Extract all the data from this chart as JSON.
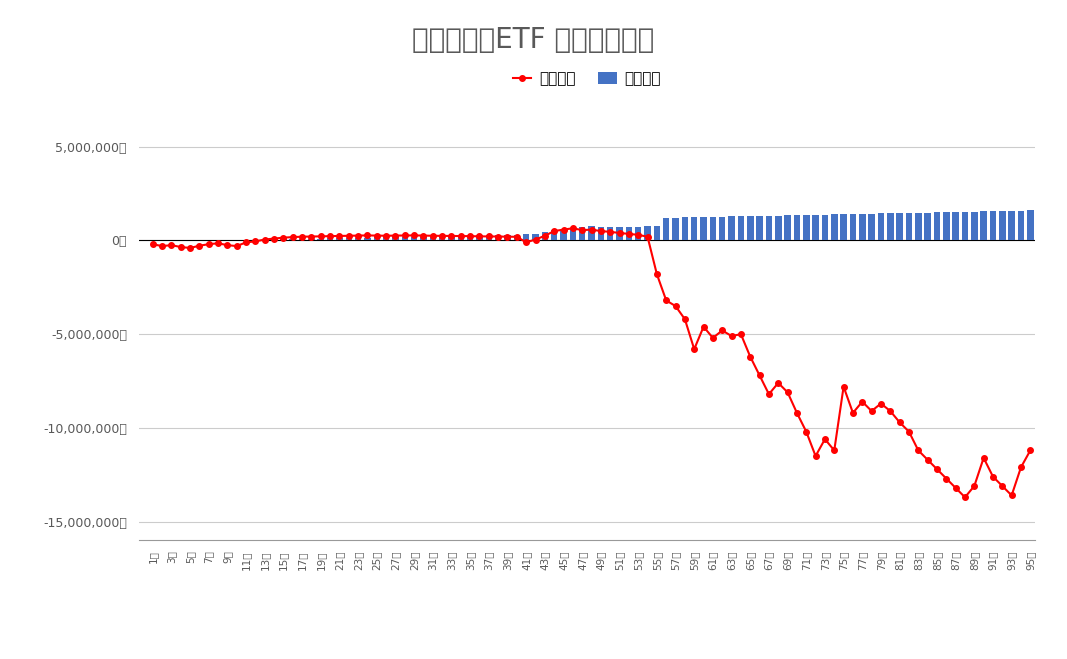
{
  "title": "トライオーETF 週別運用実績",
  "legend_realized": "実現損益",
  "legend_eval": "評価損益",
  "bar_color": "#4472C4",
  "line_color": "#FF0000",
  "background_color": "#FFFFFF",
  "ylim": [
    -16000000,
    6500000
  ],
  "yticks": [
    -15000000,
    -10000000,
    -5000000,
    0,
    5000000
  ],
  "weeks": 95,
  "realized": [
    5000,
    5000,
    5000,
    5000,
    5000,
    5000,
    5000,
    10000,
    15000,
    20000,
    25000,
    30000,
    40000,
    50000,
    60000,
    70000,
    80000,
    90000,
    100000,
    110000,
    120000,
    130000,
    140000,
    150000,
    160000,
    170000,
    180000,
    190000,
    200000,
    210000,
    220000,
    230000,
    240000,
    250000,
    260000,
    270000,
    280000,
    290000,
    300000,
    310000,
    320000,
    330000,
    450000,
    550000,
    580000,
    620000,
    700000,
    750000,
    720000,
    700000,
    710000,
    720000,
    740000,
    760000,
    780000,
    1200000,
    1220000,
    1230000,
    1240000,
    1250000,
    1260000,
    1270000,
    1280000,
    1290000,
    1300000,
    1310000,
    1320000,
    1330000,
    1340000,
    1350000,
    1360000,
    1370000,
    1380000,
    1390000,
    1400000,
    1410000,
    1420000,
    1430000,
    1440000,
    1450000,
    1460000,
    1470000,
    1480000,
    1490000,
    1500000,
    1510000,
    1520000,
    1530000,
    1540000,
    1550000,
    1560000,
    1570000,
    1580000,
    1590000,
    1600000
  ],
  "evaluation": [
    -200000,
    -300000,
    -250000,
    -350000,
    -400000,
    -280000,
    -200000,
    -150000,
    -250000,
    -300000,
    -100000,
    -50000,
    50000,
    100000,
    150000,
    180000,
    200000,
    210000,
    220000,
    230000,
    240000,
    250000,
    260000,
    270000,
    260000,
    250000,
    260000,
    265000,
    270000,
    260000,
    250000,
    245000,
    240000,
    235000,
    230000,
    220000,
    215000,
    210000,
    200000,
    195000,
    -100000,
    50000,
    250000,
    500000,
    580000,
    650000,
    550000,
    580000,
    500000,
    460000,
    400000,
    350000,
    300000,
    200000,
    -1800000,
    -3200000,
    -3500000,
    -4200000,
    -5800000,
    -4600000,
    -5200000,
    -4800000,
    -5100000,
    -5000000,
    -6200000,
    -7200000,
    -8200000,
    -7600000,
    -8100000,
    -9200000,
    -10200000,
    -11500000,
    -10600000,
    -11200000,
    -7800000,
    -9200000,
    -8600000,
    -9100000,
    -8700000,
    -9100000,
    -9700000,
    -10200000,
    -11200000,
    -11700000,
    -12200000,
    -12700000,
    -13200000,
    -13700000,
    -13100000,
    -11600000,
    -12600000,
    -13100000,
    -13600000,
    -12100000,
    -11200000
  ]
}
